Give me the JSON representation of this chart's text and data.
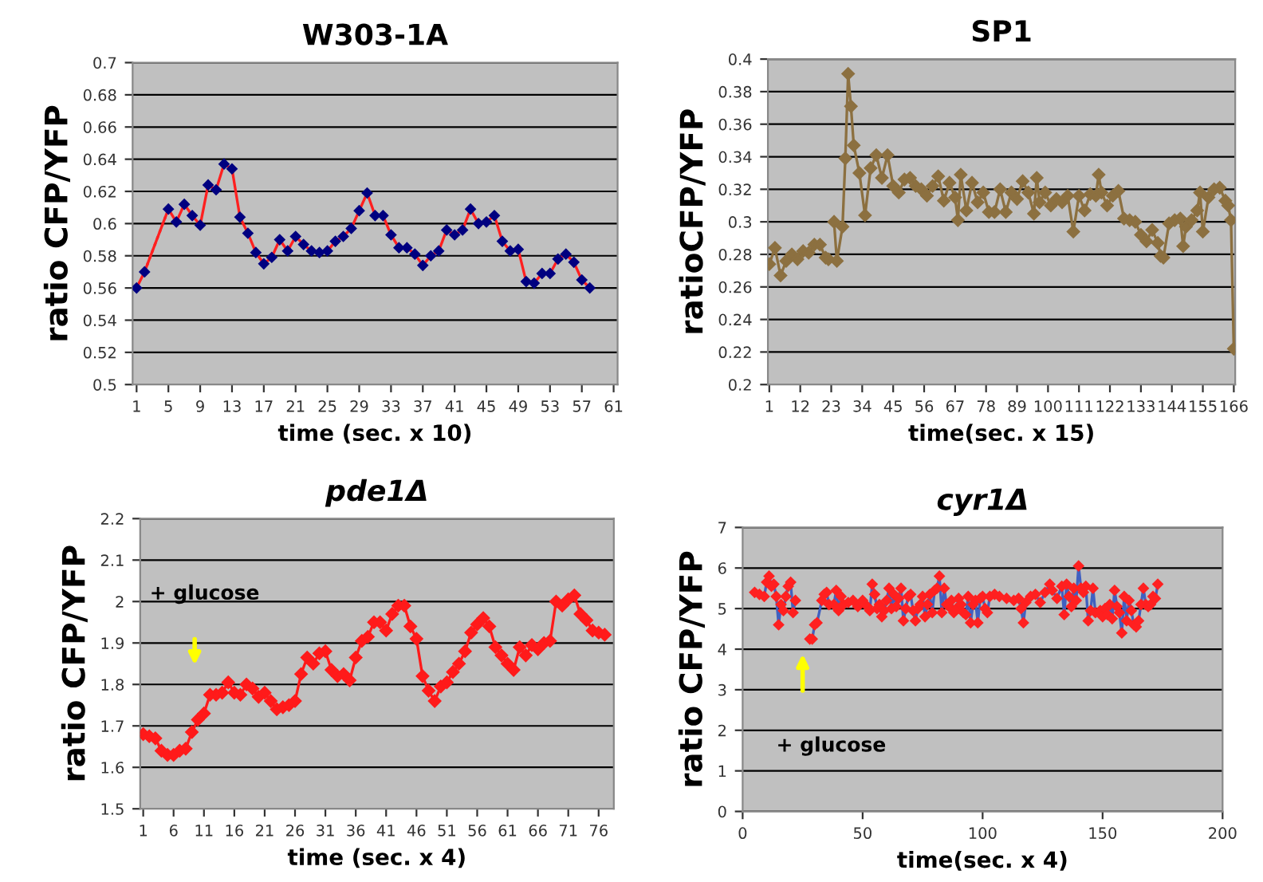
{
  "chart_data": [
    {
      "type": "line",
      "title": "W303-1A",
      "xlabel": "time (sec. x 10)",
      "ylabel": "ratio CFP/YFP",
      "marker": "diamond",
      "grid": "y",
      "xlim": [
        0.5,
        61.5
      ],
      "xticks": [
        1,
        5,
        9,
        13,
        17,
        21,
        25,
        29,
        33,
        37,
        41,
        45,
        49,
        53,
        57,
        61
      ],
      "ylim": [
        0.5,
        0.7
      ],
      "yticks": [
        0.5,
        0.52,
        0.54,
        0.56,
        0.58,
        0.6,
        0.62,
        0.64,
        0.66,
        0.68,
        0.7
      ],
      "series": [
        {
          "color": "#ff2020",
          "colors": [
            "#000080",
            "#000080",
            "#000080",
            "#000080",
            "#000080",
            "#000080",
            "#000080",
            "#000080",
            "#000080",
            "#000080",
            "#000080",
            "#000080",
            "#000080",
            "#000080",
            "#000080",
            "#000080",
            "#000080",
            "#000080",
            "#000080",
            "#000080",
            "#000080",
            "#000080",
            "#000080",
            "#000080",
            "#000080",
            "#000080",
            "#000080",
            "#000080",
            "#000080",
            "#000080",
            "#000080",
            "#000080",
            "#000080",
            "#000080",
            "#000080",
            "#000080",
            "#000080",
            "#000080",
            "#000080",
            "#000080",
            "#000080",
            "#000080",
            "#000080",
            "#000080",
            "#000080",
            "#000080",
            "#000080",
            "#000080",
            "#000080",
            "#000080",
            "#000080",
            "#000080",
            "#000080",
            "#000080",
            "#000080",
            "#000080"
          ],
          "x": [
            1,
            2,
            5,
            6,
            7,
            8,
            9,
            10,
            11,
            12,
            13,
            14,
            15,
            16,
            17,
            18,
            19,
            20,
            21,
            22,
            23,
            24,
            25,
            26,
            27,
            28,
            29,
            30,
            31,
            32,
            33,
            34,
            35,
            36,
            37,
            38,
            39,
            40,
            41,
            42,
            43,
            44,
            45,
            46,
            47,
            48,
            49,
            50,
            51,
            52,
            53,
            54,
            55,
            56,
            57,
            58
          ],
          "values": [
            0.56,
            0.57,
            0.609,
            0.601,
            0.612,
            0.605,
            0.599,
            0.624,
            0.621,
            0.637,
            0.634,
            0.604,
            0.594,
            0.582,
            0.575,
            0.579,
            0.59,
            0.583,
            0.592,
            0.587,
            0.583,
            0.582,
            0.583,
            0.589,
            0.592,
            0.597,
            0.608,
            0.619,
            0.605,
            0.605,
            0.593,
            0.585,
            0.585,
            0.581,
            0.574,
            0.58,
            0.583,
            0.596,
            0.593,
            0.596,
            0.609,
            0.6,
            0.601,
            0.605,
            0.589,
            0.583,
            0.584,
            0.564,
            0.563,
            0.569,
            0.569,
            0.578,
            0.581,
            0.576,
            0.565,
            0.56
          ]
        },
        {
          "color": "#ff2020",
          "marker": "none",
          "line_style": "dotted",
          "x": [
            2,
            5
          ],
          "values": [
            0.57,
            0.609
          ]
        }
      ]
    },
    {
      "type": "line",
      "title": "SP1",
      "xlabel": "time(sec. x 15)",
      "ylabel": "ratioCFP/YFP",
      "marker": "diamond",
      "grid": "y",
      "xlim": [
        0.5,
        166.5
      ],
      "xticks": [
        1,
        12,
        23,
        34,
        45,
        56,
        67,
        78,
        89,
        100,
        111,
        122,
        133,
        144,
        155,
        166
      ],
      "ylim": [
        0.2,
        0.4
      ],
      "yticks": [
        0.2,
        0.22,
        0.24,
        0.26,
        0.28,
        0.3,
        0.32,
        0.34,
        0.36,
        0.38,
        0.4
      ],
      "series": [
        {
          "color": "#8c7040",
          "x": [
            1,
            3,
            5,
            7,
            9,
            11,
            13,
            15,
            17,
            19,
            21,
            22,
            23,
            24,
            25,
            27,
            28,
            29,
            30,
            31,
            33,
            35,
            37,
            39,
            41,
            43,
            45,
            47,
            49,
            51,
            53,
            55,
            57,
            59,
            61,
            63,
            65,
            67,
            68,
            69,
            71,
            73,
            75,
            77,
            79,
            81,
            83,
            85,
            87,
            89,
            91,
            93,
            95,
            96,
            97,
            99,
            101,
            103,
            105,
            107,
            109,
            111,
            113,
            115,
            117,
            118,
            119,
            121,
            123,
            125,
            127,
            129,
            131,
            133,
            135,
            137,
            139,
            140,
            141,
            143,
            145,
            147,
            148,
            149,
            151,
            153,
            154,
            155,
            157,
            159,
            161,
            163,
            164,
            165,
            166
          ],
          "values": [
            0.274,
            0.284,
            0.267,
            0.276,
            0.28,
            0.277,
            0.282,
            0.281,
            0.286,
            0.286,
            0.278,
            0.277,
            null,
            0.3,
            0.276,
            0.297,
            0.339,
            0.391,
            0.371,
            0.347,
            0.33,
            0.304,
            0.333,
            0.341,
            0.327,
            0.341,
            0.322,
            0.318,
            0.326,
            0.327,
            0.322,
            0.32,
            0.316,
            0.322,
            0.328,
            0.313,
            0.324,
            0.315,
            0.301,
            0.329,
            0.307,
            0.324,
            0.312,
            0.318,
            0.306,
            0.306,
            0.32,
            0.306,
            0.318,
            0.314,
            0.325,
            0.318,
            0.305,
            0.327,
            0.312,
            0.318,
            0.31,
            0.314,
            0.312,
            0.316,
            0.294,
            0.316,
            0.307,
            0.317,
            0.316,
            0.329,
            0.318,
            0.31,
            0.316,
            0.319,
            0.302,
            0.301,
            0.3,
            0.292,
            0.288,
            0.295,
            0.287,
            0.279,
            0.278,
            0.299,
            0.301,
            0.302,
            0.285,
            0.297,
            0.301,
            0.307,
            0.318,
            0.294,
            0.315,
            0.32,
            0.321,
            0.313,
            0.31,
            0.301,
            0.222
          ]
        }
      ]
    },
    {
      "type": "line",
      "title": "pde1Δ",
      "xlabel": "time (sec. x 4)",
      "ylabel": "ratio CFP/YFP",
      "marker": "diamond",
      "grid": "y",
      "xlim": [
        0.5,
        78.5
      ],
      "xticks": [
        1,
        6,
        11,
        16,
        21,
        26,
        31,
        36,
        41,
        46,
        51,
        56,
        61,
        66,
        71,
        76
      ],
      "ylim": [
        1.5,
        2.2
      ],
      "yticks": [
        1.5,
        1.6,
        1.7,
        1.8,
        1.9,
        2,
        2.1,
        2.2
      ],
      "annotations": [
        "+ glucose"
      ],
      "series": [
        {
          "color": "#ff1a1a",
          "x": [
            1,
            2,
            3,
            4,
            5,
            6,
            7,
            8,
            9,
            10,
            11,
            12,
            13,
            14,
            15,
            16,
            17,
            18,
            19,
            20,
            21,
            22,
            23,
            24,
            25,
            26,
            27,
            28,
            29,
            30,
            31,
            32,
            33,
            34,
            35,
            36,
            37,
            38,
            39,
            40,
            41,
            42,
            43,
            44,
            45,
            46,
            47,
            48,
            49,
            50,
            51,
            52,
            53,
            54,
            55,
            56,
            57,
            58,
            59,
            60,
            61,
            62,
            63,
            64,
            65,
            66,
            67,
            68,
            69,
            70,
            71,
            72,
            73,
            74,
            75,
            76,
            77
          ],
          "values": [
            1.68,
            1.675,
            1.67,
            1.64,
            1.63,
            1.63,
            1.64,
            1.645,
            1.685,
            1.715,
            1.73,
            1.775,
            1.775,
            1.78,
            1.805,
            1.78,
            1.775,
            1.8,
            1.79,
            1.77,
            1.78,
            1.76,
            1.74,
            1.745,
            1.75,
            1.76,
            1.825,
            1.865,
            1.85,
            1.875,
            1.88,
            1.835,
            1.82,
            1.825,
            1.81,
            1.865,
            1.905,
            1.915,
            1.95,
            1.95,
            1.93,
            1.97,
            1.99,
            1.99,
            1.94,
            1.91,
            1.82,
            1.785,
            1.76,
            1.795,
            1.805,
            1.83,
            1.85,
            1.88,
            1.925,
            1.945,
            1.96,
            1.94,
            1.89,
            1.87,
            1.85,
            1.835,
            1.89,
            1.87,
            1.895,
            1.885,
            1.9,
            1.905,
            2.0,
            1.99,
            2.005,
            2.015,
            1.97,
            1.955,
            1.93,
            1.925,
            1.92
          ]
        }
      ]
    },
    {
      "type": "line",
      "title": "cyr1Δ",
      "xlabel": "time(sec. x 4)",
      "ylabel": "ratio CFP/YFP",
      "marker": "diamond",
      "grid": "y",
      "xlim": [
        0,
        200
      ],
      "xticks": [
        0,
        50,
        100,
        150,
        200
      ],
      "ylim": [
        0,
        7
      ],
      "yticks": [
        0,
        1,
        2,
        3,
        4,
        5,
        6,
        7
      ],
      "annotations": [
        "+ glucose"
      ],
      "series": [
        {
          "color": "#4060c0",
          "colors": [
            "#ff2020",
            "#ff2020",
            "#ff2020",
            "#ff2020",
            "#ff2020",
            "#ff2020",
            "#ff2020",
            "#ff2020",
            "#ff2020",
            "#ff2020",
            "#ff2020",
            "#ff2020",
            "#ff2020",
            "#ff2020",
            "#ff2020",
            "#ff2020",
            "#ff2020",
            "#ff2020",
            "#ff2020",
            "#ff2020",
            "#ff2020",
            "#ff2020",
            "#ff2020",
            "#ff2020",
            "#ff2020",
            "#ff2020",
            "#ff2020",
            "#ff2020",
            "#ff2020",
            "#ff2020",
            "#ff2020",
            "#ff2020",
            "#ff2020",
            "#ff2020",
            "#ff2020",
            "#ff2020",
            "#ff2020",
            "#ff2020",
            "#ff2020",
            "#ff2020",
            "#ff2020",
            "#ff2020",
            "#ff2020",
            "#ff2020",
            "#ff2020",
            "#ff2020",
            "#ff2020",
            "#ff2020",
            "#ff2020",
            "#ff2020",
            "#ff2020",
            "#ff2020",
            "#ff2020",
            "#ff2020",
            "#ff2020",
            "#ff2020",
            "#ff2020",
            "#ff2020",
            "#ff2020",
            "#ff2020",
            "#ff2020",
            "#ff2020",
            "#ff2020",
            "#ff2020",
            "#ff2020",
            "#ff2020",
            "#ff2020",
            "#ff2020",
            "#ff2020",
            "#ff2020",
            "#ff2020",
            "#ff2020",
            "#ff2020",
            "#ff2020",
            "#ff2020",
            "#ff2020",
            "#ff2020",
            "#ff2020",
            "#ff2020",
            "#ff2020",
            "#ff2020",
            "#ff2020",
            "#ff2020",
            "#ff2020",
            "#ff2020",
            "#ff2020",
            "#ff2020",
            "#ff2020",
            "#ff2020",
            "#ff2020",
            "#ff2020",
            "#ff2020",
            "#ff2020",
            "#ff2020",
            "#ff2020",
            "#ff2020",
            "#ff2020",
            "#ff2020",
            "#ff2020",
            "#ff2020",
            "#ff2020",
            "#ff2020",
            "#ff2020",
            "#ff2020",
            "#ff2020",
            "#ff2020",
            "#ff2020",
            "#ff2020",
            "#ff2020",
            "#ff2020",
            "#ff2020",
            "#ff2020",
            "#ff2020",
            "#ff2020",
            "#ff2020",
            "#ff2020",
            "#ff2020",
            "#ff2020",
            "#ff2020",
            "#ff2020",
            "#ff2020",
            "#ff2020",
            "#ff2020",
            "#ff2020",
            "#ff2020",
            "#ff2020",
            "#ff2020",
            "#ff2020",
            "#ff2020",
            "#ff2020",
            "#ff2020",
            "#ff2020",
            "#ff2020",
            "#ff2020",
            "#ff2020",
            "#ff2020",
            "#ff2020",
            "#ff2020",
            "#ff2020",
            "#ff2020",
            "#ff2020"
          ],
          "x": [
            5,
            7,
            9,
            10,
            11,
            12,
            13,
            14,
            15,
            16,
            17,
            18,
            19,
            20,
            21,
            22,
            25,
            28,
            29,
            30,
            31,
            33,
            34,
            35,
            36,
            38,
            39,
            40,
            41,
            42,
            44,
            46,
            48,
            50,
            52,
            53,
            54,
            55,
            56,
            57,
            58,
            59,
            60,
            61,
            62,
            63,
            64,
            65,
            66,
            67,
            68,
            69,
            70,
            71,
            72,
            73,
            74,
            75,
            76,
            77,
            78,
            79,
            80,
            81,
            82,
            83,
            84,
            85,
            86,
            87,
            88,
            89,
            90,
            91,
            92,
            93,
            94,
            95,
            96,
            97,
            98,
            99,
            100,
            101,
            102,
            103,
            105,
            107,
            110,
            113,
            115,
            116,
            117,
            118,
            120,
            122,
            124,
            126,
            128,
            129,
            131,
            133,
            134,
            135,
            136,
            137,
            138,
            139,
            140,
            141,
            142,
            143,
            144,
            145,
            146,
            147,
            149,
            150,
            151,
            152,
            153,
            154,
            155,
            156,
            157,
            158,
            159,
            160,
            161,
            162,
            163,
            164,
            165,
            166,
            167,
            168,
            169,
            170,
            171,
            172,
            173
          ],
          "values": [
            5.4,
            5.35,
            5.3,
            5.65,
            5.8,
            5.55,
            5.6,
            5.3,
            4.6,
            5.1,
            4.95,
            5.3,
            5.55,
            5.65,
            4.9,
            5.2,
            null,
            4.25,
            4.25,
            4.6,
            4.65,
            5.2,
            5.35,
            5.4,
            5.1,
            5.1,
            5.45,
            4.95,
            5.3,
            5.1,
            5.15,
            5.2,
            5.05,
            5.2,
            5.05,
            4.95,
            5.6,
            5.35,
            5.0,
            5.1,
            4.8,
            4.95,
            5.2,
            5.5,
            5.0,
            5.35,
            5.05,
            5.25,
            5.5,
            4.7,
            5.0,
            5.3,
            5.35,
            4.95,
            4.7,
            5.0,
            5.1,
            5.3,
            4.8,
            5.1,
            5.35,
            4.9,
            5.45,
            5.5,
            5.8,
            4.9,
            5.5,
            5.1,
            5.05,
            5.2,
            4.9,
            5.0,
            5.25,
            5.1,
            4.9,
            4.85,
            5.3,
            4.65,
            5.1,
            5.2,
            4.65,
            5.25,
            5.3,
            5.0,
            4.9,
            5.3,
            5.35,
            5.3,
            5.25,
            5.2,
            5.25,
            5.0,
            4.65,
            5.15,
            5.3,
            5.35,
            5.15,
            5.4,
            5.6,
            5.45,
            5.25,
            5.55,
            4.85,
            5.6,
            5.3,
            5.05,
            5.5,
            5.2,
            6.05,
            5.5,
            5.4,
            5.55,
            4.7,
            4.95,
            5.5,
            4.9,
            4.95,
            4.8,
            5.0,
            4.85,
            5.1,
            4.75,
            5.45,
            5.05,
            4.9,
            4.4,
            5.3,
            4.7,
            5.2,
            4.95,
            4.6,
            4.55,
            4.7,
            5.1,
            5.5,
            5.1,
            5.05,
            5.1,
            5.3,
            5.25,
            5.6
          ]
        }
      ]
    }
  ]
}
